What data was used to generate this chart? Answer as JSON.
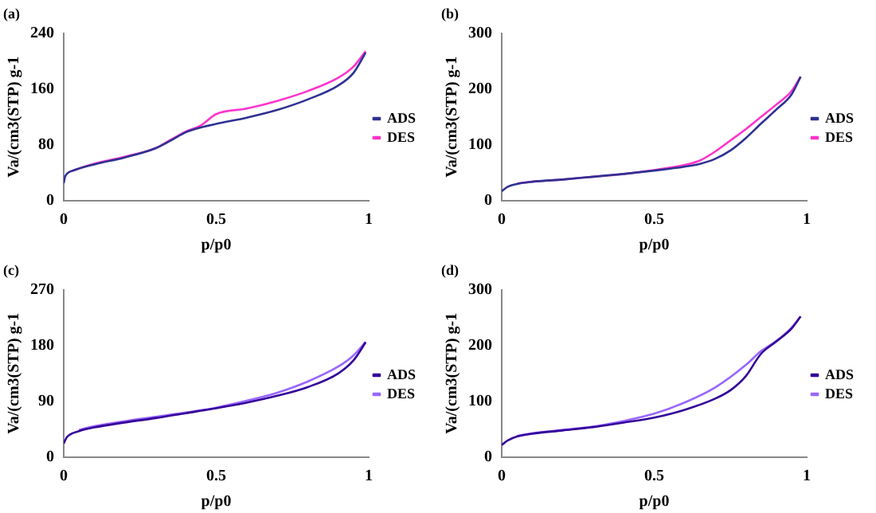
{
  "chart_data": [
    {
      "type": "line",
      "title": "(a)",
      "xlabel": "p/p0",
      "ylabel": "Va/(cm3(STP) g-1",
      "xlim": [
        0,
        1
      ],
      "xticks": [
        0,
        0.5,
        1
      ],
      "ylim": [
        0,
        240
      ],
      "yticks": [
        0,
        80,
        160,
        240
      ],
      "grid": false,
      "legend": "right",
      "marker": "none",
      "series": [
        {
          "name": "ADS",
          "color": "#2e3192",
          "x": [
            0,
            0.005,
            0.03,
            0.1,
            0.2,
            0.3,
            0.35,
            0.4,
            0.45,
            0.5,
            0.6,
            0.7,
            0.8,
            0.9,
            0.95,
            0.99
          ],
          "values": [
            25,
            35,
            43,
            52,
            62,
            75,
            86,
            98,
            105,
            110,
            119,
            130,
            145,
            165,
            183,
            212
          ]
        },
        {
          "name": "DES",
          "color": "#ff33cc",
          "x": [
            0.03,
            0.1,
            0.2,
            0.3,
            0.35,
            0.4,
            0.45,
            0.5,
            0.6,
            0.7,
            0.8,
            0.9,
            0.95,
            0.99
          ],
          "values": [
            43,
            53,
            63,
            75,
            87,
            99,
            108,
            124,
            132,
            143,
            157,
            176,
            192,
            214
          ]
        }
      ]
    },
    {
      "type": "line",
      "title": "(b)",
      "xlabel": "p/p0",
      "ylabel": "Va/(cm3(STP) g-1",
      "xlim": [
        0,
        1
      ],
      "xticks": [
        0,
        0.5,
        1
      ],
      "ylim": [
        0,
        300
      ],
      "yticks": [
        0,
        100,
        200,
        300
      ],
      "grid": false,
      "legend": "right",
      "marker": "none",
      "series": [
        {
          "name": "ADS",
          "color": "#2e3192",
          "x": [
            0,
            0.02,
            0.05,
            0.1,
            0.2,
            0.3,
            0.4,
            0.5,
            0.6,
            0.65,
            0.7,
            0.75,
            0.8,
            0.85,
            0.9,
            0.95,
            0.98
          ],
          "values": [
            17,
            25,
            30,
            34,
            38,
            43,
            48,
            54,
            61,
            66,
            75,
            90,
            112,
            138,
            163,
            190,
            222
          ]
        },
        {
          "name": "DES",
          "color": "#ff33cc",
          "x": [
            0.05,
            0.1,
            0.2,
            0.3,
            0.4,
            0.5,
            0.6,
            0.65,
            0.7,
            0.75,
            0.8,
            0.85,
            0.9,
            0.95,
            0.98
          ],
          "values": [
            31,
            34,
            38,
            43,
            48,
            55,
            64,
            72,
            88,
            108,
            128,
            150,
            172,
            196,
            222
          ]
        }
      ]
    },
    {
      "type": "line",
      "title": "(c)",
      "xlabel": "p/p0",
      "ylabel": "Va/(cm3(STP) g-1",
      "xlim": [
        0,
        1
      ],
      "xticks": [
        0,
        0.5,
        1
      ],
      "ylim": [
        0,
        270
      ],
      "yticks": [
        0,
        90,
        180,
        270
      ],
      "grid": false,
      "legend": "right",
      "marker": "none",
      "series": [
        {
          "name": "ADS",
          "color": "#330099",
          "x": [
            0,
            0.01,
            0.05,
            0.1,
            0.2,
            0.3,
            0.4,
            0.5,
            0.6,
            0.7,
            0.8,
            0.9,
            0.95,
            0.99
          ],
          "values": [
            22,
            32,
            42,
            48,
            56,
            63,
            71,
            79,
            88,
            99,
            113,
            135,
            156,
            185
          ]
        },
        {
          "name": "DES",
          "color": "#9966ff",
          "x": [
            0.05,
            0.1,
            0.2,
            0.3,
            0.4,
            0.5,
            0.6,
            0.7,
            0.8,
            0.9,
            0.95,
            0.99
          ],
          "values": [
            44,
            50,
            58,
            65,
            72,
            80,
            91,
            104,
            122,
            146,
            164,
            186
          ]
        }
      ]
    },
    {
      "type": "line",
      "title": "(d)",
      "xlabel": "p/p0",
      "ylabel": "Va/(cm3(STP) g-1",
      "xlim": [
        0,
        1
      ],
      "xticks": [
        0,
        0.5,
        1
      ],
      "ylim": [
        0,
        300
      ],
      "yticks": [
        0,
        100,
        200,
        300
      ],
      "grid": false,
      "legend": "right",
      "marker": "none",
      "series": [
        {
          "name": "ADS",
          "color": "#330099",
          "x": [
            0,
            0.02,
            0.05,
            0.1,
            0.2,
            0.3,
            0.4,
            0.5,
            0.6,
            0.7,
            0.75,
            0.8,
            0.85,
            0.9,
            0.95,
            0.98
          ],
          "values": [
            22,
            30,
            37,
            42,
            48,
            54,
            62,
            71,
            85,
            105,
            120,
            145,
            185,
            207,
            230,
            252
          ]
        },
        {
          "name": "DES",
          "color": "#9966ff",
          "x": [
            0.05,
            0.1,
            0.2,
            0.3,
            0.4,
            0.5,
            0.6,
            0.7,
            0.8,
            0.85,
            0.9,
            0.95,
            0.98
          ],
          "values": [
            38,
            43,
            49,
            55,
            65,
            78,
            98,
            125,
            165,
            190,
            208,
            232,
            252
          ]
        }
      ]
    }
  ]
}
